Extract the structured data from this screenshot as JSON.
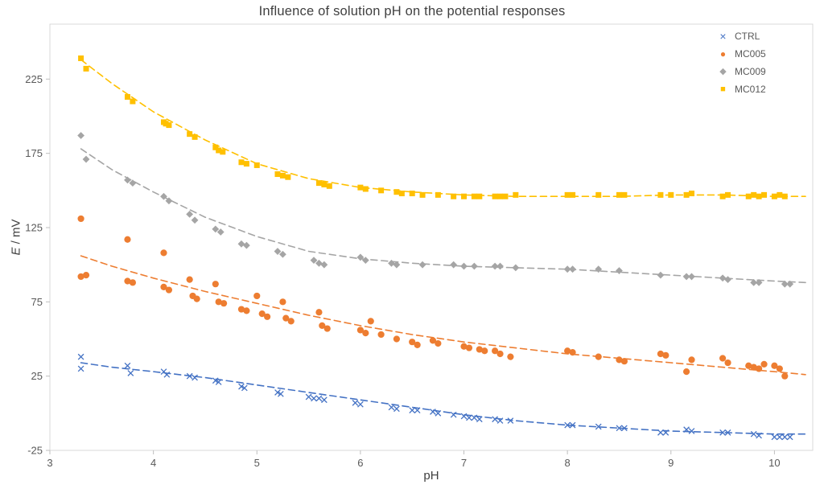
{
  "colors": {
    "plot_border": "#D9D9D9",
    "axis_line": "#BFBFBF",
    "tick_text": "#595959",
    "title_text": "#404040",
    "ctrl_blue": "#4472C4",
    "mc005_orange": "#ED7D31",
    "mc009_gray": "#A5A5A5",
    "mc012_yellow": "#FFC000"
  },
  "chart_data": {
    "type": "scatter",
    "title": "Influence of solution pH on the potential responses",
    "xlabel": "pH",
    "ylabel": "E / mV",
    "ylabel_symbol": "E",
    "ylabel_units": " / mV",
    "xlim": [
      3,
      10.37
    ],
    "ylim": [
      -25,
      262
    ],
    "x_ticks": [
      3,
      4,
      5,
      6,
      7,
      8,
      9,
      10
    ],
    "y_ticks": [
      -25,
      25,
      75,
      125,
      175,
      225
    ],
    "grid": false,
    "legend_position": "top-right-inside",
    "trendline_style": "dashed",
    "series": [
      {
        "name": "CTRL",
        "marker": "x",
        "color": "#4472C4",
        "points": [
          [
            3.3,
            38
          ],
          [
            3.3,
            30
          ],
          [
            3.75,
            32
          ],
          [
            3.78,
            27
          ],
          [
            4.1,
            28
          ],
          [
            4.13,
            26
          ],
          [
            4.35,
            25
          ],
          [
            4.4,
            24
          ],
          [
            4.6,
            22
          ],
          [
            4.63,
            21
          ],
          [
            4.85,
            18
          ],
          [
            4.88,
            17
          ],
          [
            5.2,
            14
          ],
          [
            5.23,
            13
          ],
          [
            5.5,
            11
          ],
          [
            5.55,
            10
          ],
          [
            5.6,
            10
          ],
          [
            5.65,
            9
          ],
          [
            5.95,
            7
          ],
          [
            6.0,
            6
          ],
          [
            6.3,
            4
          ],
          [
            6.35,
            3
          ],
          [
            6.5,
            2
          ],
          [
            6.55,
            2
          ],
          [
            6.7,
            1
          ],
          [
            6.75,
            0
          ],
          [
            6.9,
            -1
          ],
          [
            7.0,
            -2
          ],
          [
            7.05,
            -3
          ],
          [
            7.1,
            -3
          ],
          [
            7.15,
            -4
          ],
          [
            7.3,
            -4
          ],
          [
            7.35,
            -5
          ],
          [
            7.45,
            -5
          ],
          [
            8.0,
            -8
          ],
          [
            8.05,
            -8
          ],
          [
            8.3,
            -9
          ],
          [
            8.5,
            -10
          ],
          [
            8.55,
            -10
          ],
          [
            8.9,
            -13
          ],
          [
            8.95,
            -13
          ],
          [
            9.15,
            -11
          ],
          [
            9.2,
            -12
          ],
          [
            9.5,
            -13
          ],
          [
            9.55,
            -13
          ],
          [
            9.8,
            -14
          ],
          [
            9.85,
            -15
          ],
          [
            10.0,
            -16
          ],
          [
            10.05,
            -16
          ],
          [
            10.1,
            -16
          ],
          [
            10.15,
            -16
          ]
        ],
        "trend": [
          [
            3.3,
            34
          ],
          [
            3.6,
            31
          ],
          [
            4,
            28
          ],
          [
            4.5,
            24
          ],
          [
            5,
            19
          ],
          [
            5.5,
            14
          ],
          [
            6,
            9
          ],
          [
            6.5,
            4
          ],
          [
            7,
            -1
          ],
          [
            7.5,
            -5
          ],
          [
            8,
            -8
          ],
          [
            8.5,
            -10
          ],
          [
            9,
            -12
          ],
          [
            9.5,
            -13
          ],
          [
            10,
            -14
          ],
          [
            10.3,
            -14
          ]
        ]
      },
      {
        "name": "MC005",
        "marker": "circle",
        "color": "#ED7D31",
        "points": [
          [
            3.3,
            131
          ],
          [
            3.3,
            92
          ],
          [
            3.35,
            93
          ],
          [
            3.75,
            117
          ],
          [
            3.75,
            89
          ],
          [
            3.8,
            88
          ],
          [
            4.1,
            108
          ],
          [
            4.1,
            85
          ],
          [
            4.15,
            83
          ],
          [
            4.35,
            90
          ],
          [
            4.38,
            79
          ],
          [
            4.42,
            77
          ],
          [
            4.6,
            87
          ],
          [
            4.63,
            75
          ],
          [
            4.68,
            74
          ],
          [
            4.85,
            70
          ],
          [
            4.9,
            69
          ],
          [
            5.0,
            79
          ],
          [
            5.05,
            67
          ],
          [
            5.1,
            65
          ],
          [
            5.25,
            75
          ],
          [
            5.28,
            64
          ],
          [
            5.33,
            62
          ],
          [
            5.6,
            68
          ],
          [
            5.63,
            59
          ],
          [
            5.68,
            57
          ],
          [
            6.0,
            56
          ],
          [
            6.05,
            54
          ],
          [
            6.1,
            62
          ],
          [
            6.2,
            53
          ],
          [
            6.35,
            50
          ],
          [
            6.5,
            48
          ],
          [
            6.55,
            46
          ],
          [
            6.7,
            49
          ],
          [
            6.75,
            47
          ],
          [
            7.0,
            45
          ],
          [
            7.05,
            44
          ],
          [
            7.15,
            43
          ],
          [
            7.2,
            42
          ],
          [
            7.3,
            42
          ],
          [
            7.35,
            40
          ],
          [
            7.45,
            38
          ],
          [
            8.0,
            42
          ],
          [
            8.05,
            41
          ],
          [
            8.3,
            38
          ],
          [
            8.5,
            36
          ],
          [
            8.55,
            35
          ],
          [
            8.9,
            40
          ],
          [
            8.95,
            39
          ],
          [
            9.15,
            28
          ],
          [
            9.2,
            36
          ],
          [
            9.5,
            37
          ],
          [
            9.55,
            34
          ],
          [
            9.75,
            32
          ],
          [
            9.8,
            31
          ],
          [
            9.85,
            30
          ],
          [
            9.9,
            33
          ],
          [
            10.0,
            32
          ],
          [
            10.05,
            30
          ],
          [
            10.1,
            25
          ]
        ],
        "trend": [
          [
            3.3,
            106
          ],
          [
            3.6,
            99
          ],
          [
            4,
            91
          ],
          [
            4.5,
            82
          ],
          [
            5,
            74
          ],
          [
            5.5,
            66
          ],
          [
            6,
            59
          ],
          [
            6.5,
            53
          ],
          [
            7,
            48
          ],
          [
            7.5,
            44
          ],
          [
            8,
            40
          ],
          [
            8.5,
            37
          ],
          [
            9,
            34
          ],
          [
            9.5,
            31
          ],
          [
            10,
            28
          ],
          [
            10.3,
            26
          ]
        ]
      },
      {
        "name": "MC009",
        "marker": "diamond",
        "color": "#A5A5A5",
        "points": [
          [
            3.3,
            187
          ],
          [
            3.35,
            171
          ],
          [
            3.75,
            157
          ],
          [
            3.8,
            155
          ],
          [
            4.1,
            146
          ],
          [
            4.15,
            143
          ],
          [
            4.35,
            134
          ],
          [
            4.4,
            130
          ],
          [
            4.6,
            124
          ],
          [
            4.65,
            122
          ],
          [
            4.85,
            114
          ],
          [
            4.9,
            113
          ],
          [
            5.2,
            109
          ],
          [
            5.25,
            107
          ],
          [
            5.55,
            103
          ],
          [
            5.6,
            101
          ],
          [
            5.65,
            100
          ],
          [
            6.0,
            105
          ],
          [
            6.05,
            103
          ],
          [
            6.3,
            101
          ],
          [
            6.35,
            100
          ],
          [
            6.6,
            100
          ],
          [
            6.9,
            100
          ],
          [
            7.0,
            99
          ],
          [
            7.1,
            99
          ],
          [
            7.3,
            99
          ],
          [
            7.35,
            99
          ],
          [
            7.5,
            98
          ],
          [
            8.0,
            97
          ],
          [
            8.05,
            97
          ],
          [
            8.3,
            97
          ],
          [
            8.5,
            96
          ],
          [
            8.9,
            93
          ],
          [
            9.15,
            92
          ],
          [
            9.2,
            92
          ],
          [
            9.5,
            91
          ],
          [
            9.55,
            90
          ],
          [
            9.8,
            88
          ],
          [
            9.85,
            88
          ],
          [
            10.1,
            87
          ],
          [
            10.15,
            87
          ]
        ],
        "trend": [
          [
            3.3,
            178
          ],
          [
            3.6,
            164
          ],
          [
            4,
            149
          ],
          [
            4.5,
            132
          ],
          [
            5,
            119
          ],
          [
            5.5,
            109
          ],
          [
            6,
            104
          ],
          [
            6.5,
            101
          ],
          [
            7,
            99
          ],
          [
            7.5,
            98
          ],
          [
            8,
            97
          ],
          [
            8.5,
            95
          ],
          [
            9,
            93
          ],
          [
            9.5,
            91
          ],
          [
            10,
            89
          ],
          [
            10.3,
            88
          ]
        ]
      },
      {
        "name": "MC012",
        "marker": "square",
        "color": "#FFC000",
        "points": [
          [
            3.3,
            239
          ],
          [
            3.35,
            232
          ],
          [
            3.75,
            213
          ],
          [
            3.8,
            210
          ],
          [
            4.1,
            196
          ],
          [
            4.12,
            195
          ],
          [
            4.15,
            194
          ],
          [
            4.35,
            188
          ],
          [
            4.4,
            186
          ],
          [
            4.6,
            179
          ],
          [
            4.63,
            177
          ],
          [
            4.67,
            176
          ],
          [
            4.85,
            169
          ],
          [
            4.9,
            168
          ],
          [
            5.0,
            167
          ],
          [
            5.2,
            161
          ],
          [
            5.25,
            160
          ],
          [
            5.3,
            159
          ],
          [
            5.6,
            155
          ],
          [
            5.65,
            154
          ],
          [
            5.7,
            153
          ],
          [
            6.0,
            152
          ],
          [
            6.05,
            151
          ],
          [
            6.2,
            150
          ],
          [
            6.35,
            149
          ],
          [
            6.4,
            148
          ],
          [
            6.5,
            148
          ],
          [
            6.6,
            147
          ],
          [
            6.75,
            147
          ],
          [
            6.9,
            146
          ],
          [
            7.0,
            146
          ],
          [
            7.1,
            146
          ],
          [
            7.15,
            146
          ],
          [
            7.3,
            146
          ],
          [
            7.35,
            146
          ],
          [
            7.4,
            146
          ],
          [
            7.5,
            147
          ],
          [
            8.0,
            147
          ],
          [
            8.05,
            147
          ],
          [
            8.3,
            147
          ],
          [
            8.5,
            147
          ],
          [
            8.55,
            147
          ],
          [
            8.9,
            147
          ],
          [
            9.0,
            147
          ],
          [
            9.15,
            147
          ],
          [
            9.2,
            148
          ],
          [
            9.5,
            146
          ],
          [
            9.55,
            147
          ],
          [
            9.75,
            146
          ],
          [
            9.8,
            147
          ],
          [
            9.85,
            146
          ],
          [
            9.9,
            147
          ],
          [
            10.0,
            146
          ],
          [
            10.05,
            147
          ],
          [
            10.1,
            146
          ]
        ],
        "trend": [
          [
            3.3,
            238
          ],
          [
            3.6,
            222
          ],
          [
            4,
            203
          ],
          [
            4.5,
            184
          ],
          [
            5,
            168
          ],
          [
            5.5,
            158
          ],
          [
            6,
            152
          ],
          [
            6.5,
            149
          ],
          [
            7,
            147
          ],
          [
            7.5,
            146
          ],
          [
            8,
            146
          ],
          [
            8.5,
            146
          ],
          [
            9,
            147
          ],
          [
            9.5,
            147
          ],
          [
            10,
            146
          ],
          [
            10.3,
            146
          ]
        ]
      }
    ]
  }
}
